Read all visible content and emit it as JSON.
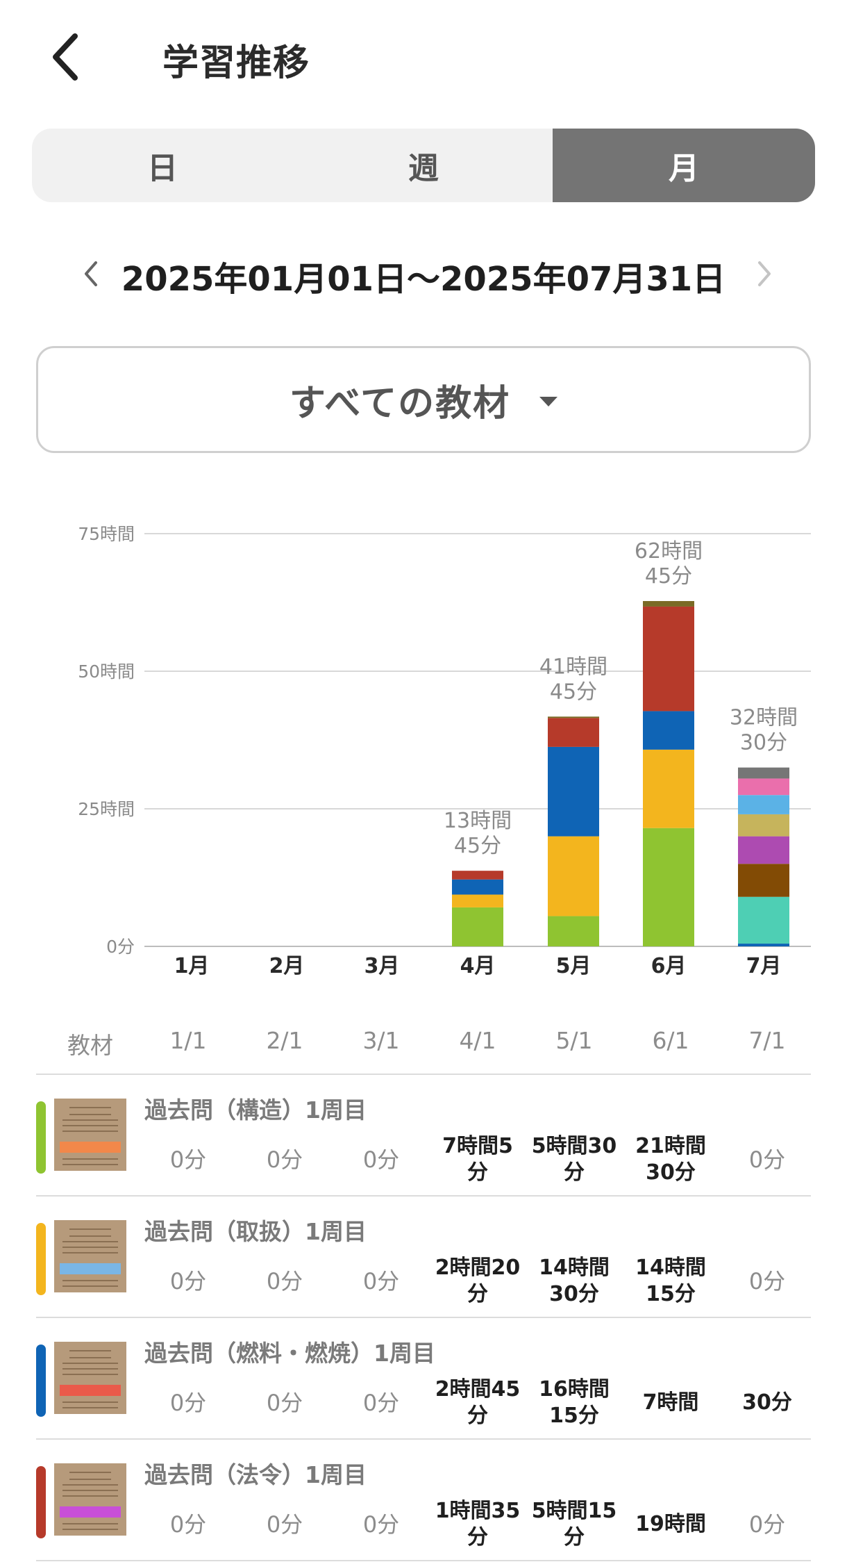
{
  "header": {
    "title": "学習推移",
    "back_icon": "chevron-left-icon"
  },
  "tabs": [
    {
      "label": "日",
      "selected": false
    },
    {
      "label": "週",
      "selected": false
    },
    {
      "label": "月",
      "selected": true
    }
  ],
  "date_range": {
    "text": "2025年01月01日〜2025年07月31日",
    "prev_icon": "chevron-left-icon",
    "next_icon": "chevron-right-icon"
  },
  "material_selector": {
    "label": "すべての教材",
    "caret_icon": "caret-down-icon"
  },
  "chart_data": {
    "type": "bar",
    "stacked": true,
    "categories": [
      "1月",
      "2月",
      "3月",
      "4月",
      "5月",
      "6月",
      "7月"
    ],
    "y_ticks": [
      "0分",
      "25時間",
      "50時間",
      "75時間"
    ],
    "ylim": [
      0,
      75
    ],
    "grid": true,
    "totals": [
      {
        "category": "4月",
        "line1": "13時間",
        "line2": "45分"
      },
      {
        "category": "5月",
        "line1": "41時間",
        "line2": "45分"
      },
      {
        "category": "6月",
        "line1": "62時間",
        "line2": "45分"
      },
      {
        "category": "7月",
        "line1": "32時間",
        "line2": "30分"
      }
    ],
    "series": [
      {
        "color": "#8fc431",
        "values": [
          0,
          0,
          0,
          7.08,
          5.5,
          21.5,
          0
        ]
      },
      {
        "color": "#f3b51e",
        "values": [
          0,
          0,
          0,
          2.33,
          14.5,
          14.25,
          0
        ]
      },
      {
        "color": "#0f64b5",
        "values": [
          0,
          0,
          0,
          2.75,
          16.25,
          7.0,
          0.5
        ]
      },
      {
        "color": "#b63a2a",
        "values": [
          0,
          0,
          0,
          1.58,
          5.25,
          19.0,
          0
        ]
      },
      {
        "color": "#7a6a25",
        "values": [
          0,
          0,
          0,
          0,
          0.25,
          1.0,
          0
        ]
      },
      {
        "color": "#4ecfb4",
        "values": [
          0,
          0,
          0,
          0,
          0,
          0,
          8.5
        ]
      },
      {
        "color": "#824b05",
        "values": [
          0,
          0,
          0,
          0,
          0,
          0,
          6.0
        ]
      },
      {
        "color": "#ad4bb1",
        "values": [
          0,
          0,
          0,
          0,
          0,
          0,
          5.0
        ]
      },
      {
        "color": "#c6b45c",
        "values": [
          0,
          0,
          0,
          0,
          0,
          0,
          4.0
        ]
      },
      {
        "color": "#5bb2e6",
        "values": [
          0,
          0,
          0,
          0,
          0,
          0,
          3.5
        ]
      },
      {
        "color": "#ea6fac",
        "values": [
          0,
          0,
          0,
          0,
          0,
          0,
          3.0
        ]
      },
      {
        "color": "#767676",
        "values": [
          0,
          0,
          0,
          0,
          0,
          0,
          2.0
        ]
      }
    ]
  },
  "table": {
    "columns": [
      "教材",
      "1/1",
      "2/1",
      "3/1",
      "4/1",
      "5/1",
      "6/1",
      "7/1"
    ],
    "rows": [
      {
        "title": "過去問（構造）1周目",
        "color": "#8fc431",
        "thumb_band_color": "#f2884a",
        "cells": [
          {
            "l1": "0分",
            "l2": ""
          },
          {
            "l1": "0分",
            "l2": ""
          },
          {
            "l1": "0分",
            "l2": ""
          },
          {
            "l1": "7時間5",
            "l2": "分"
          },
          {
            "l1": "5時間30",
            "l2": "分"
          },
          {
            "l1": "21時間",
            "l2": "30分"
          },
          {
            "l1": "0分",
            "l2": ""
          }
        ]
      },
      {
        "title": "過去問（取扱）1周目",
        "color": "#f3b51e",
        "thumb_band_color": "#7ab6e6",
        "cells": [
          {
            "l1": "0分",
            "l2": ""
          },
          {
            "l1": "0分",
            "l2": ""
          },
          {
            "l1": "0分",
            "l2": ""
          },
          {
            "l1": "2時間20",
            "l2": "分"
          },
          {
            "l1": "14時間",
            "l2": "30分"
          },
          {
            "l1": "14時間",
            "l2": "15分"
          },
          {
            "l1": "0分",
            "l2": ""
          }
        ]
      },
      {
        "title": "過去問（燃料・燃焼）1周目",
        "color": "#0f64b5",
        "thumb_band_color": "#ea5a4a",
        "cells": [
          {
            "l1": "0分",
            "l2": ""
          },
          {
            "l1": "0分",
            "l2": ""
          },
          {
            "l1": "0分",
            "l2": ""
          },
          {
            "l1": "2時間45",
            "l2": "分"
          },
          {
            "l1": "16時間",
            "l2": "15分"
          },
          {
            "l1": "7時間",
            "l2": ""
          },
          {
            "l1": "30分",
            "l2": ""
          }
        ]
      },
      {
        "title": "過去問（法令）1周目",
        "color": "#b63a2a",
        "thumb_band_color": "#c84fd8",
        "cells": [
          {
            "l1": "0分",
            "l2": ""
          },
          {
            "l1": "0分",
            "l2": ""
          },
          {
            "l1": "0分",
            "l2": ""
          },
          {
            "l1": "1時間35",
            "l2": "分"
          },
          {
            "l1": "5時間15",
            "l2": "分"
          },
          {
            "l1": "19時間",
            "l2": ""
          },
          {
            "l1": "0分",
            "l2": ""
          }
        ]
      }
    ]
  }
}
